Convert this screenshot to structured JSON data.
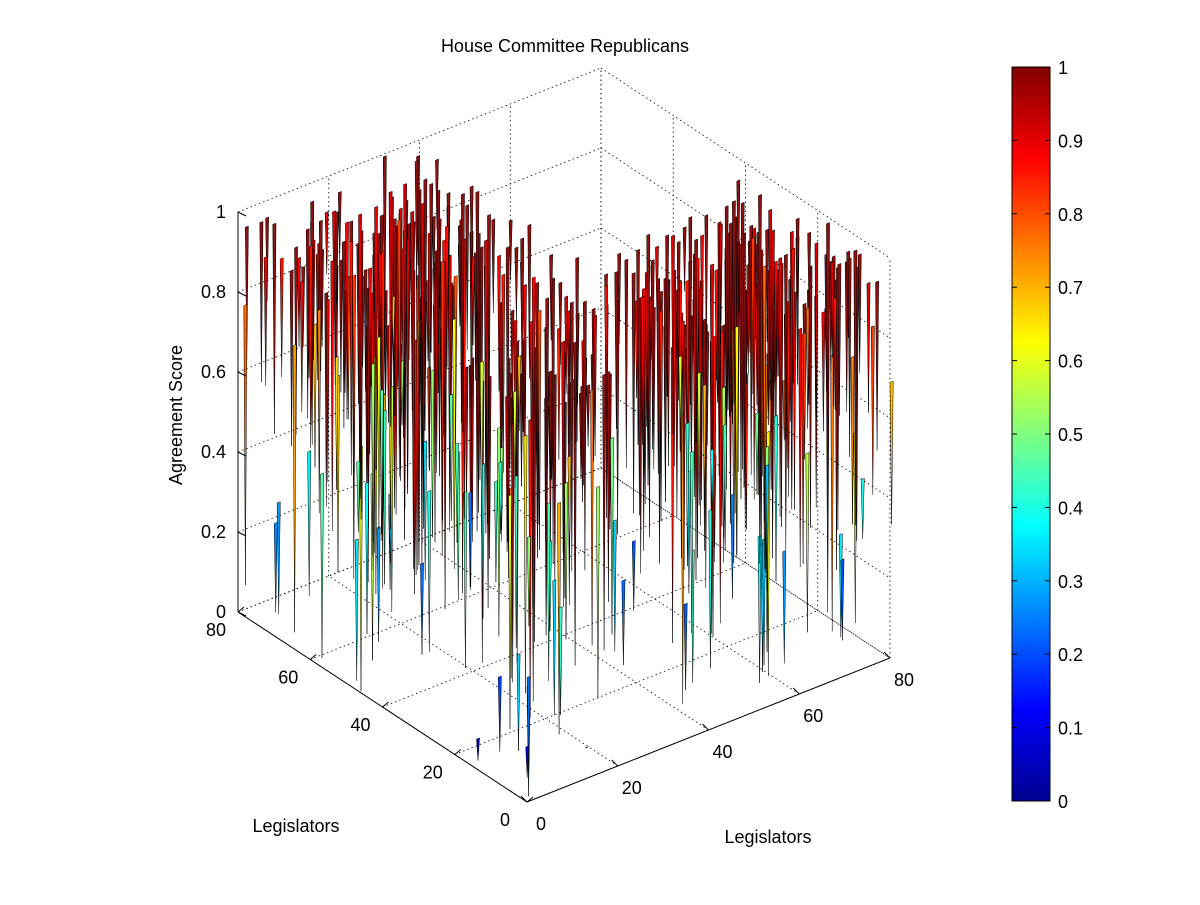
{
  "chart_data": {
    "type": "surface3d",
    "title": "House Committee Republicans",
    "xlabel": "Legislators",
    "ylabel": "Legislators",
    "zlabel": "Agreement Score",
    "xlim": [
      0,
      80
    ],
    "ylim": [
      0,
      80
    ],
    "zlim": [
      0,
      1
    ],
    "xticks": [
      "0",
      "20",
      "40",
      "60",
      "80"
    ],
    "yticks": [
      "0",
      "20",
      "40",
      "60",
      "80"
    ],
    "zticks": [
      "0",
      "0.2",
      "0.4",
      "0.6",
      "0.8",
      "1"
    ],
    "grid": true,
    "colormap": "jet",
    "colorbar": {
      "range": [
        0,
        1
      ],
      "ticks": [
        "0",
        "0.1",
        "0.2",
        "0.3",
        "0.4",
        "0.5",
        "0.6",
        "0.7",
        "0.8",
        "0.9",
        "1"
      ]
    },
    "blocks": [
      {
        "x_range": [
          0,
          20
        ],
        "y_range": [
          0,
          20
        ],
        "typical_score": 0.95,
        "min_score": 0.0
      },
      {
        "x_range": [
          20,
          35
        ],
        "y_range": [
          20,
          35
        ],
        "typical_score": 0.9,
        "min_score": 0.3
      },
      {
        "x_range": [
          40,
          80
        ],
        "y_range": [
          0,
          40
        ],
        "typical_score": 0.85,
        "min_score": 0.2
      },
      {
        "x_range": [
          0,
          40
        ],
        "y_range": [
          40,
          80
        ],
        "typical_score": 0.85,
        "min_score": 0.2
      }
    ]
  }
}
